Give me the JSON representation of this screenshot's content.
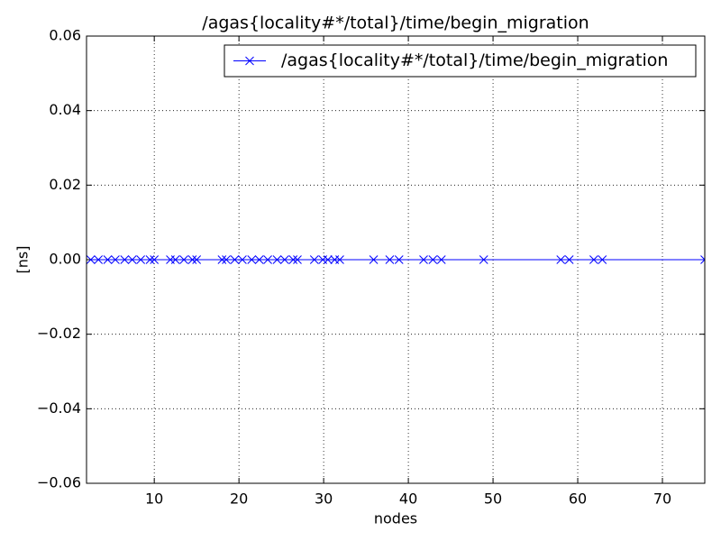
{
  "chart_data": {
    "type": "line",
    "title": "/agas{locality#*/total}/time/begin_migration",
    "xlabel": "nodes",
    "ylabel": "[ns]",
    "x": [
      2.5,
      3.4,
      4.5,
      5.4,
      6.5,
      7.4,
      8.4,
      9.5,
      10.0,
      11.9,
      12.5,
      13.5,
      14.5,
      15.0,
      18.0,
      18.5,
      19.5,
      20.4,
      21.5,
      22.4,
      23.4,
      24.5,
      25.4,
      26.4,
      26.9,
      28.9,
      29.9,
      30.5,
      31.3,
      31.9,
      35.9,
      37.8,
      38.9,
      41.8,
      42.9,
      43.9,
      48.9,
      58.0,
      59.0,
      61.9,
      62.9,
      75
    ],
    "series": [
      {
        "name": "/agas{locality#*/total}/time/begin_migration",
        "color": "#0000ff",
        "marker": "x",
        "values": [
          0,
          0,
          0,
          0,
          0,
          0,
          0,
          0,
          0,
          0,
          0,
          0,
          0,
          0,
          0,
          0,
          0,
          0,
          0,
          0,
          0,
          0,
          0,
          0,
          0,
          0,
          0,
          0,
          0,
          0,
          0,
          0,
          0,
          0,
          0,
          0,
          0,
          0,
          0,
          0,
          0,
          0
        ]
      }
    ],
    "xlim": [
      2,
      75
    ],
    "xticks": [
      10,
      20,
      30,
      40,
      50,
      60,
      70
    ],
    "ylim": [
      -0.06,
      0.06
    ],
    "yticks": [
      {
        "value": -0.06,
        "label": "−0.06"
      },
      {
        "value": -0.04,
        "label": "−0.04"
      },
      {
        "value": -0.02,
        "label": "−0.02"
      },
      {
        "value": 0,
        "label": "0.00"
      },
      {
        "value": 0.02,
        "label": "0.02"
      },
      {
        "value": 0.04,
        "label": "0.04"
      },
      {
        "value": 0.06,
        "label": "0.06"
      }
    ],
    "grid": true,
    "legend": "upper right"
  }
}
